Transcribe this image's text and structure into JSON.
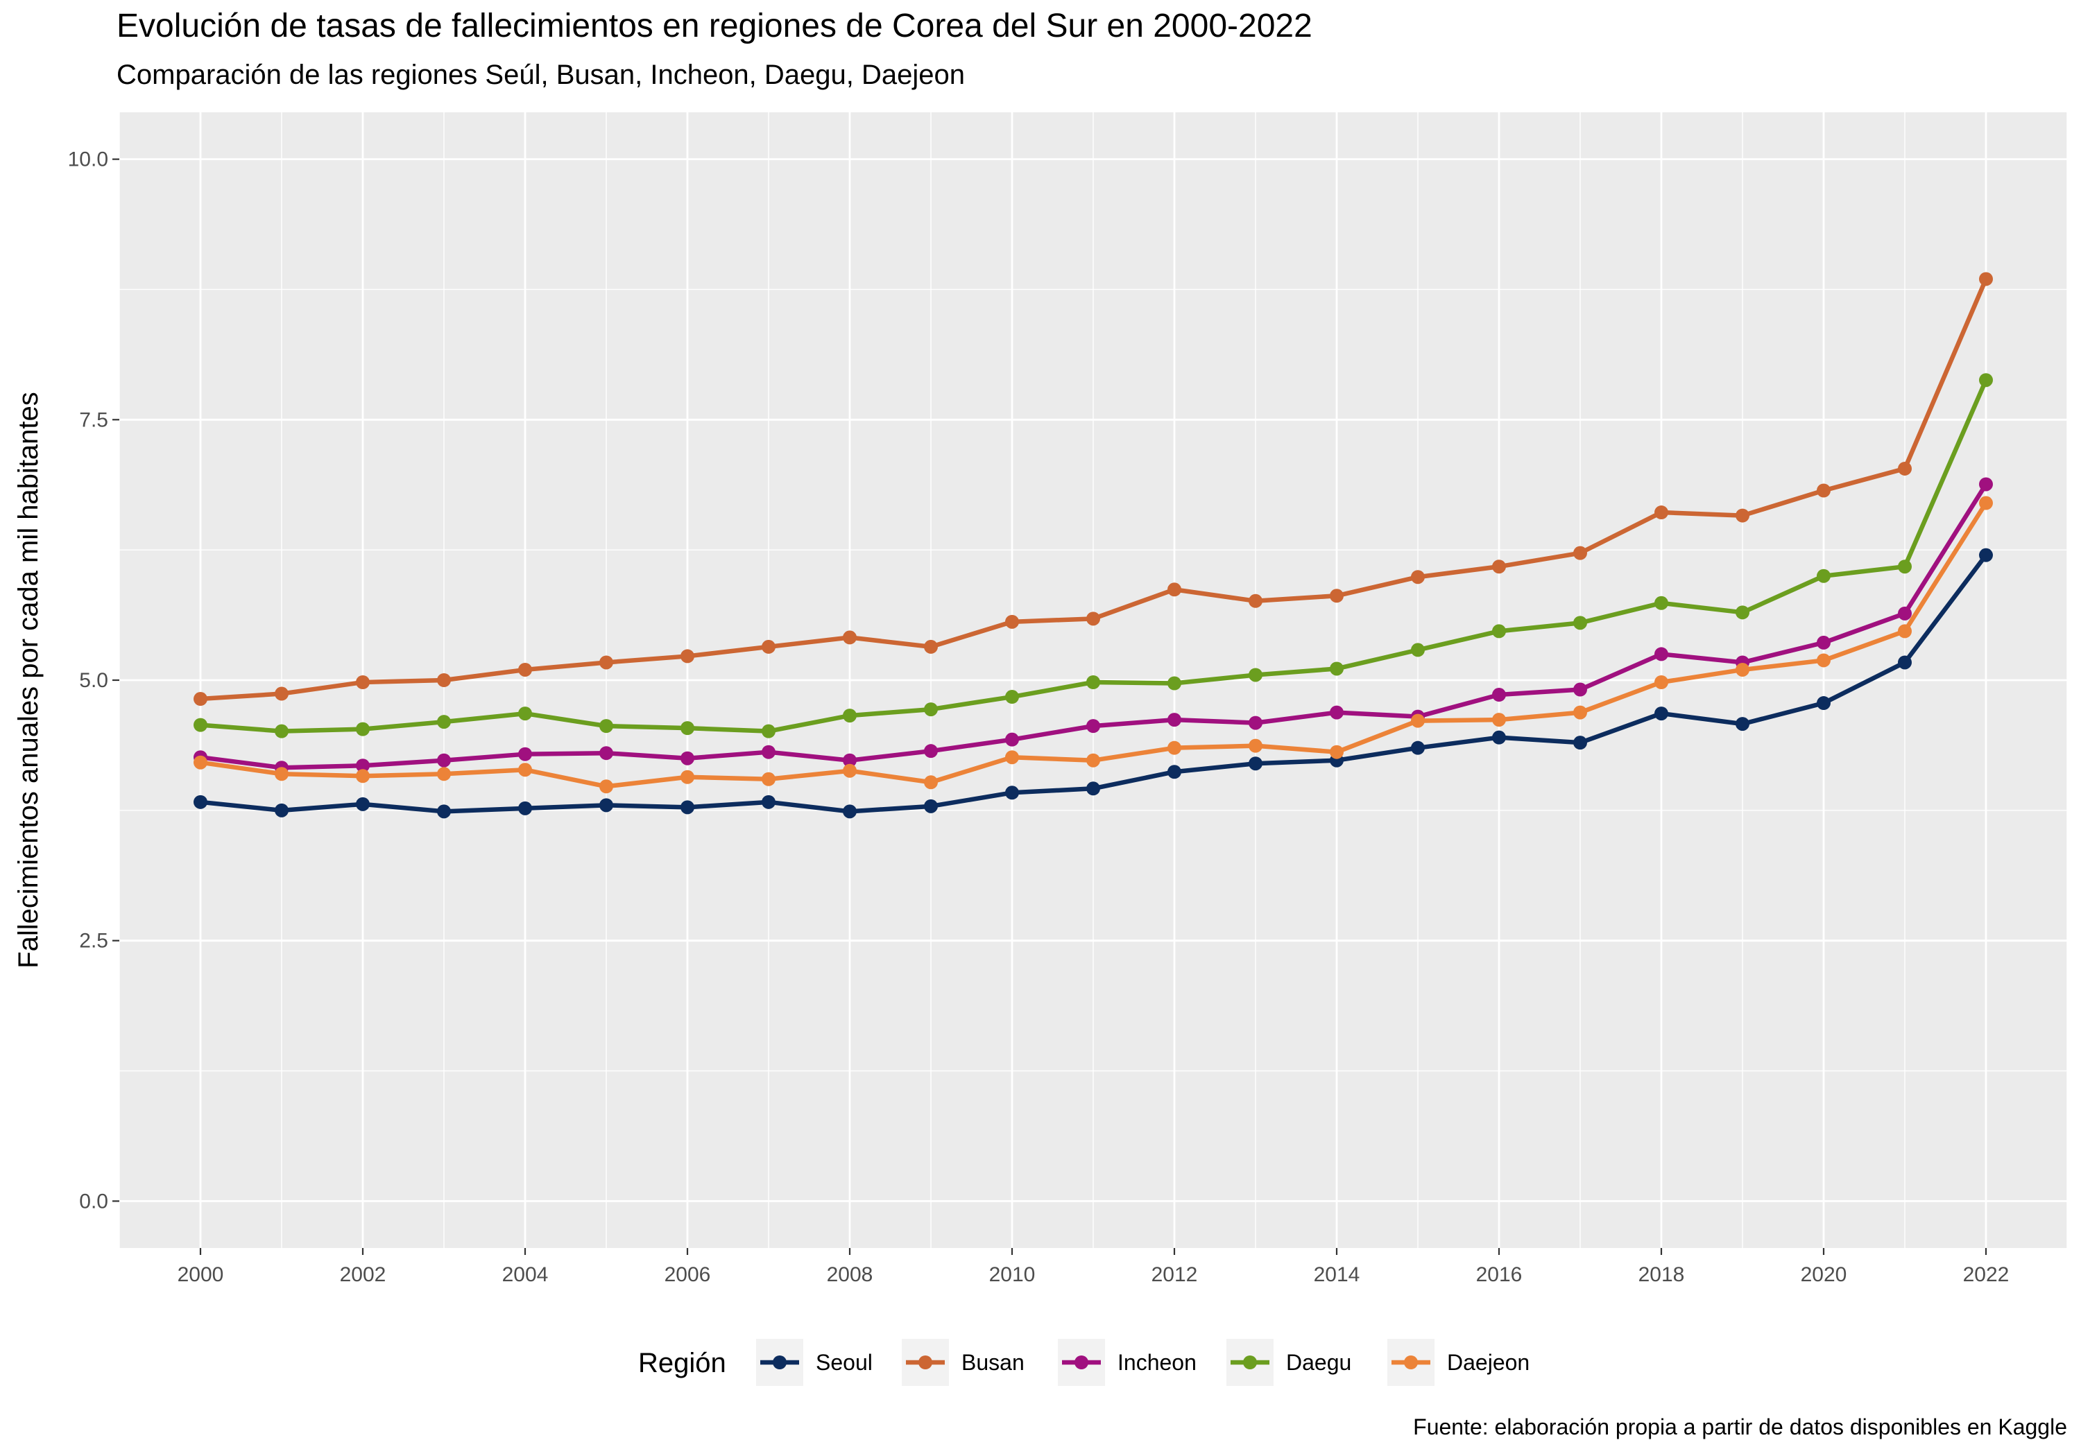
{
  "title": "Evolución de tasas de fallecimientos en regiones de Corea del Sur en 2000-2022",
  "subtitle": "Comparación de las regiones Seúl, Busan, Incheon, Daegu, Daejeon",
  "caption": "Fuente: elaboración propia a partir de datos disponibles en Kaggle",
  "chart_data": {
    "type": "line",
    "title": "Evolución de tasas de fallecimientos en regiones de Corea del Sur en 2000-2022",
    "subtitle": "Comparación de las regiones Seúl, Busan, Incheon, Daegu, Daejeon",
    "xlabel": "",
    "ylabel": "Fallecimientos anuales por cada mil habitantes",
    "x": [
      2000,
      2001,
      2002,
      2003,
      2004,
      2005,
      2006,
      2007,
      2008,
      2009,
      2010,
      2011,
      2012,
      2013,
      2014,
      2015,
      2016,
      2017,
      2018,
      2019,
      2020,
      2021,
      2022
    ],
    "xticks": [
      "2000",
      "2002",
      "2004",
      "2006",
      "2008",
      "2010",
      "2012",
      "2014",
      "2016",
      "2018",
      "2020",
      "2022"
    ],
    "yticks": [
      "0.0",
      "2.5",
      "5.0",
      "7.5",
      "10.0"
    ],
    "xlim": [
      1999,
      2023
    ],
    "ylim": [
      -0.45,
      10.45
    ],
    "grid": true,
    "legend": {
      "title": "Región",
      "position": "bottom"
    },
    "series": [
      {
        "name": "Seoul",
        "color": "#0c2c5e",
        "values": [
          3.83,
          3.75,
          3.81,
          3.74,
          3.77,
          3.8,
          3.78,
          3.83,
          3.74,
          3.79,
          3.92,
          3.96,
          4.12,
          4.2,
          4.23,
          4.35,
          4.45,
          4.4,
          4.68,
          4.58,
          4.78,
          5.17,
          6.2
        ]
      },
      {
        "name": "Busan",
        "color": "#cc6633",
        "values": [
          4.82,
          4.87,
          4.98,
          5.0,
          5.1,
          5.17,
          5.23,
          5.32,
          5.41,
          5.32,
          5.56,
          5.59,
          5.87,
          5.76,
          5.81,
          5.99,
          6.09,
          6.22,
          6.61,
          6.58,
          6.82,
          7.03,
          8.85
        ]
      },
      {
        "name": "Incheon",
        "color": "#a0107f",
        "values": [
          4.26,
          4.16,
          4.18,
          4.23,
          4.29,
          4.3,
          4.25,
          4.31,
          4.23,
          4.32,
          4.43,
          4.56,
          4.62,
          4.59,
          4.69,
          4.65,
          4.86,
          4.91,
          5.25,
          5.17,
          5.36,
          5.64,
          6.88
        ]
      },
      {
        "name": "Daegu",
        "color": "#6b9e1f",
        "values": [
          4.57,
          4.51,
          4.53,
          4.6,
          4.68,
          4.56,
          4.54,
          4.51,
          4.66,
          4.72,
          4.84,
          4.98,
          4.97,
          5.05,
          5.11,
          5.29,
          5.47,
          5.55,
          5.74,
          5.65,
          6.0,
          6.09,
          7.88
        ]
      },
      {
        "name": "Daejeon",
        "color": "#ec8338",
        "values": [
          4.21,
          4.1,
          4.08,
          4.1,
          4.14,
          3.98,
          4.07,
          4.05,
          4.13,
          4.02,
          4.26,
          4.23,
          4.35,
          4.37,
          4.31,
          4.61,
          4.62,
          4.69,
          4.98,
          5.1,
          5.19,
          5.47,
          6.7
        ]
      }
    ]
  }
}
